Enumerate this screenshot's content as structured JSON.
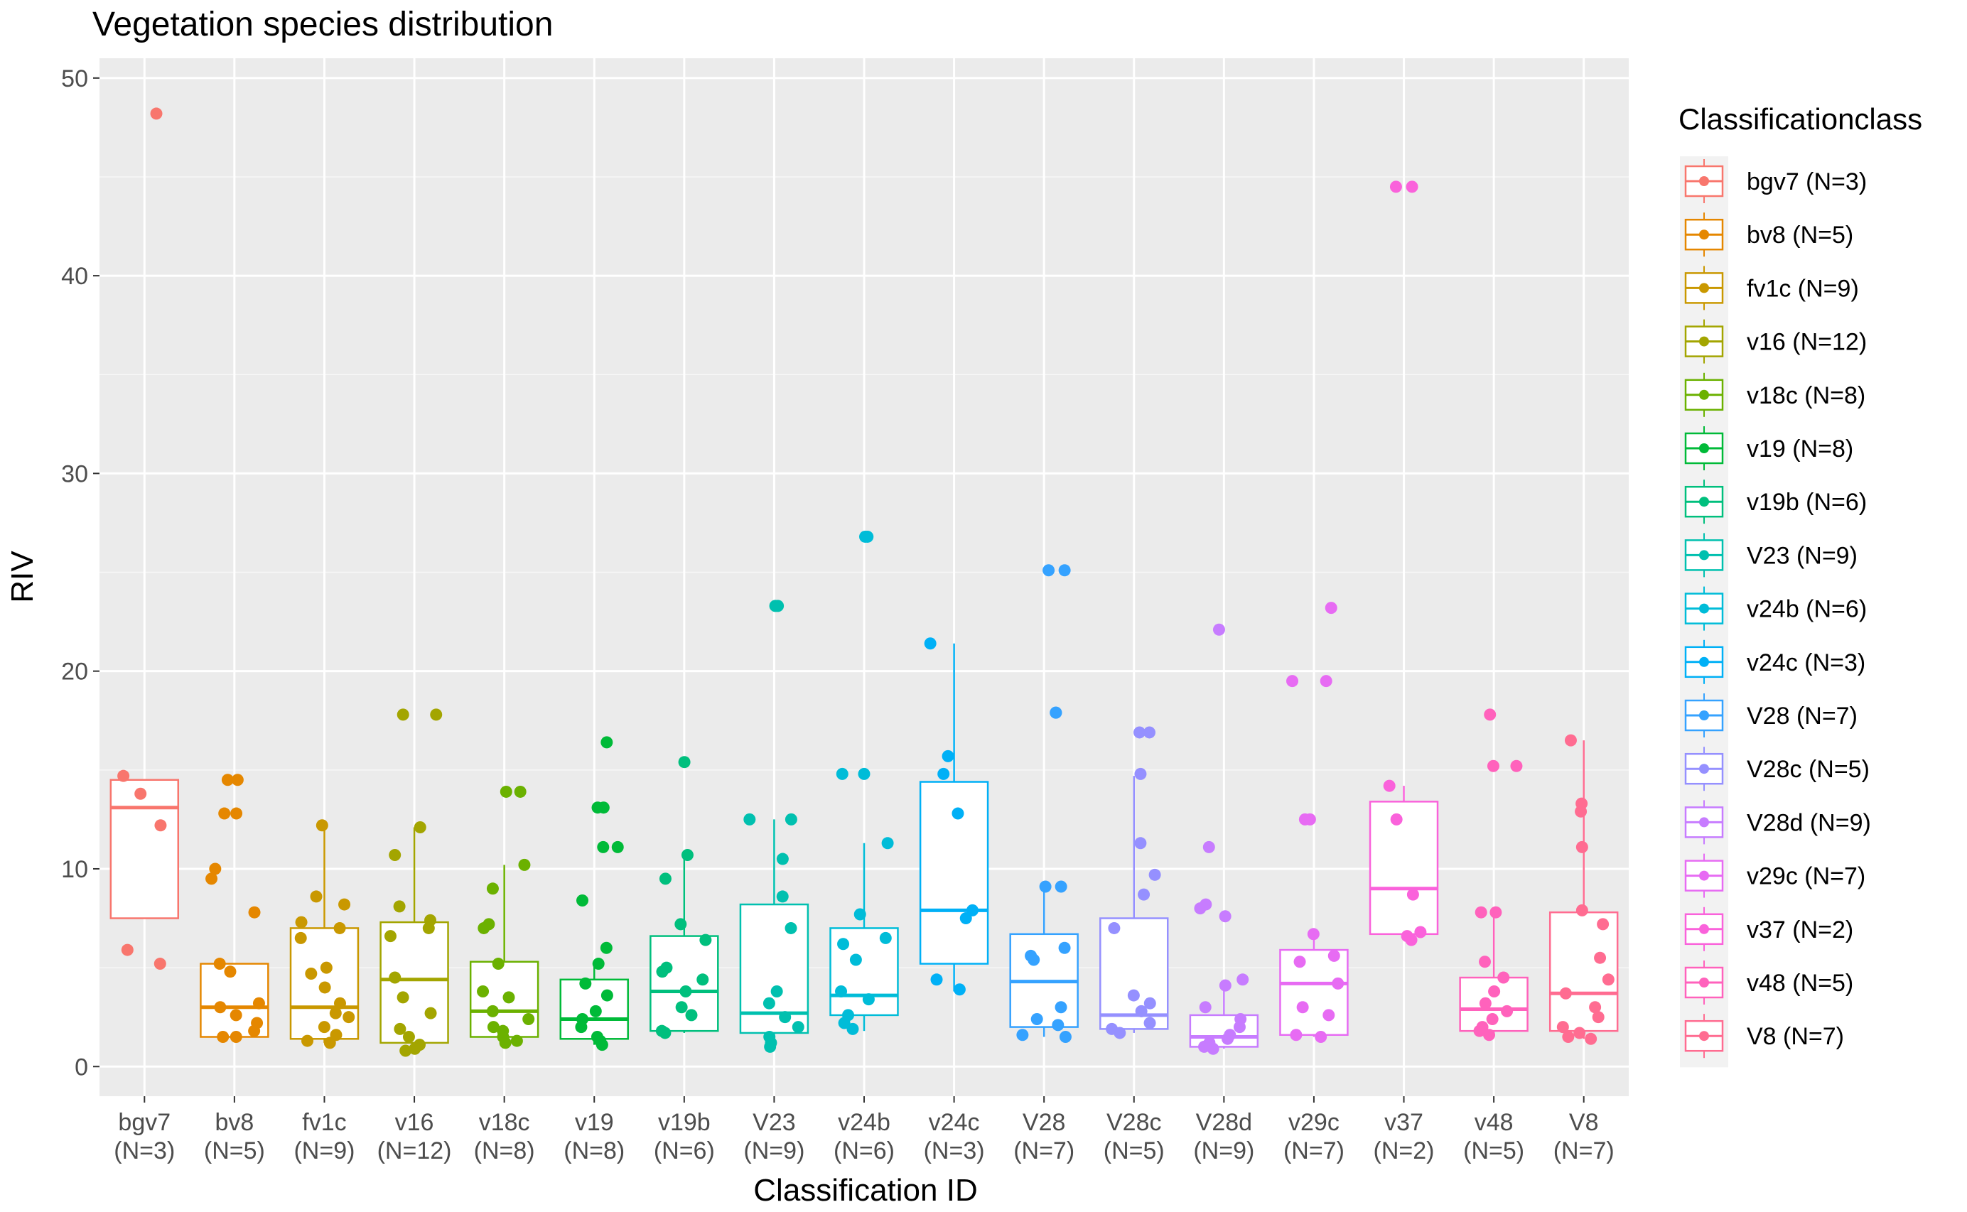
{
  "chart_data": {
    "type": "boxplot",
    "title": "Vegetation species distribution",
    "xlabel": "Classification ID",
    "ylabel": "RIV",
    "ylim": [
      -1.5,
      51
    ],
    "yticks": [
      0,
      10,
      20,
      30,
      40,
      50
    ],
    "legend_title": "Classificationclass",
    "legend_position": "right",
    "series": [
      {
        "id": "bgv7",
        "n_label": "(N=3)",
        "legend": "bgv7 (N=3)",
        "color": "#F8766D",
        "box": {
          "q1": 7.5,
          "median": 13.1,
          "q3": 14.5,
          "whisker_low": 7.5,
          "whisker_high": 14.5
        },
        "points": [
          48.2,
          14.7,
          13.8,
          12.2,
          5.9,
          5.2
        ]
      },
      {
        "id": "bv8",
        "n_label": "(N=5)",
        "legend": "bv8 (N=5)",
        "color": "#E58700",
        "box": {
          "q1": 1.5,
          "median": 3.0,
          "q3": 5.2,
          "whisker_low": 1.5,
          "whisker_high": 5.2
        },
        "points": [
          14.5,
          14.5,
          12.8,
          12.8,
          10.0,
          9.5,
          7.8,
          5.2,
          4.8,
          3.2,
          3.0,
          2.6,
          2.2,
          1.8,
          1.5,
          1.5
        ]
      },
      {
        "id": "fv1c",
        "n_label": "(N=9)",
        "legend": "fv1c (N=9)",
        "color": "#C99800",
        "box": {
          "q1": 1.4,
          "median": 3.0,
          "q3": 7.0,
          "whisker_low": 1.2,
          "whisker_high": 12.2
        },
        "points": [
          12.2,
          8.6,
          8.2,
          7.3,
          7.0,
          6.5,
          5.0,
          4.7,
          4.0,
          3.2,
          2.7,
          2.5,
          2.0,
          1.6,
          1.3,
          1.2
        ]
      },
      {
        "id": "v16",
        "n_label": "(N=12)",
        "legend": "v16 (N=12)",
        "color": "#A3A500",
        "box": {
          "q1": 1.2,
          "median": 4.4,
          "q3": 7.3,
          "whisker_low": 0.8,
          "whisker_high": 12.1
        },
        "points": [
          17.8,
          17.8,
          12.1,
          10.7,
          8.1,
          7.4,
          7.0,
          6.6,
          4.5,
          3.5,
          2.7,
          1.9,
          1.5,
          1.1,
          0.9,
          0.8
        ]
      },
      {
        "id": "v18c",
        "n_label": "(N=8)",
        "legend": "v18c (N=8)",
        "color": "#6BB100",
        "box": {
          "q1": 1.5,
          "median": 2.8,
          "q3": 5.3,
          "whisker_low": 1.2,
          "whisker_high": 10.2
        },
        "points": [
          13.9,
          13.9,
          10.2,
          9.0,
          7.2,
          7.0,
          5.2,
          3.8,
          3.5,
          2.8,
          2.4,
          2.0,
          1.8,
          1.5,
          1.3,
          1.2
        ]
      },
      {
        "id": "v19",
        "n_label": "(N=8)",
        "legend": "v19 (N=8)",
        "color": "#00BA38",
        "box": {
          "q1": 1.4,
          "median": 2.4,
          "q3": 4.4,
          "whisker_low": 1.1,
          "whisker_high": 5.2
        },
        "points": [
          16.4,
          13.1,
          13.1,
          11.1,
          11.1,
          8.4,
          6.0,
          5.2,
          4.2,
          3.6,
          2.8,
          2.4,
          2.0,
          1.5,
          1.3,
          1.1
        ]
      },
      {
        "id": "v19b",
        "n_label": "(N=6)",
        "legend": "v19b (N=6)",
        "color": "#00BF7D",
        "box": {
          "q1": 1.8,
          "median": 3.8,
          "q3": 6.6,
          "whisker_low": 1.7,
          "whisker_high": 10.6
        },
        "points": [
          15.4,
          10.7,
          9.5,
          7.2,
          6.4,
          5.0,
          4.8,
          4.4,
          3.8,
          3.0,
          2.6,
          1.8,
          1.7
        ]
      },
      {
        "id": "V23",
        "n_label": "(N=9)",
        "legend": "V23 (N=9)",
        "color": "#00C0AF",
        "box": {
          "q1": 1.7,
          "median": 2.7,
          "q3": 8.2,
          "whisker_low": 1.0,
          "whisker_high": 12.5
        },
        "points": [
          23.3,
          23.3,
          12.5,
          12.5,
          10.5,
          8.6,
          7.0,
          3.8,
          3.2,
          2.5,
          2.0,
          1.5,
          1.2,
          1.0
        ]
      },
      {
        "id": "v24b",
        "n_label": "(N=6)",
        "legend": "v24b (N=6)",
        "color": "#00BCD8",
        "box": {
          "q1": 2.6,
          "median": 3.6,
          "q3": 7.0,
          "whisker_low": 1.8,
          "whisker_high": 11.3
        },
        "points": [
          26.8,
          26.8,
          14.8,
          14.8,
          11.3,
          7.7,
          6.5,
          6.2,
          5.4,
          3.8,
          3.4,
          2.6,
          2.2,
          1.9
        ]
      },
      {
        "id": "v24c",
        "n_label": "(N=3)",
        "legend": "v24c (N=3)",
        "color": "#00B0F6",
        "box": {
          "q1": 5.2,
          "median": 7.9,
          "q3": 14.4,
          "whisker_low": 3.8,
          "whisker_high": 21.4
        },
        "points": [
          21.4,
          15.7,
          14.8,
          12.8,
          7.9,
          7.5,
          4.4,
          3.9
        ]
      },
      {
        "id": "V28",
        "n_label": "(N=7)",
        "legend": "V28 (N=7)",
        "color": "#35A2FF",
        "box": {
          "q1": 2.0,
          "median": 4.3,
          "q3": 6.7,
          "whisker_low": 1.5,
          "whisker_high": 9.1
        },
        "points": [
          25.1,
          25.1,
          17.9,
          17.9,
          9.1,
          9.1,
          6.0,
          5.6,
          5.4,
          3.0,
          2.4,
          2.1,
          1.6,
          1.5
        ]
      },
      {
        "id": "V28c",
        "n_label": "(N=5)",
        "legend": "V28c (N=5)",
        "color": "#9590FF",
        "box": {
          "q1": 1.9,
          "median": 2.6,
          "q3": 7.5,
          "whisker_low": 1.7,
          "whisker_high": 14.7
        },
        "points": [
          16.9,
          16.9,
          14.8,
          11.3,
          9.7,
          8.7,
          7.0,
          3.6,
          3.2,
          2.8,
          2.2,
          1.9,
          1.7
        ]
      },
      {
        "id": "V28d",
        "n_label": "(N=9)",
        "legend": "V28d (N=9)",
        "color": "#C77CFF",
        "box": {
          "q1": 1.0,
          "median": 1.5,
          "q3": 2.6,
          "whisker_low": 0.9,
          "whisker_high": 4.4
        },
        "points": [
          22.1,
          11.1,
          8.2,
          8.0,
          7.6,
          4.4,
          4.1,
          3.0,
          2.4,
          2.0,
          1.6,
          1.4,
          1.2,
          1.0,
          0.9
        ]
      },
      {
        "id": "v29c",
        "n_label": "(N=7)",
        "legend": "v29c (N=7)",
        "color": "#E76BF3",
        "box": {
          "q1": 1.6,
          "median": 4.2,
          "q3": 5.9,
          "whisker_low": 1.5,
          "whisker_high": 6.7
        },
        "points": [
          23.2,
          19.5,
          19.5,
          12.5,
          12.5,
          6.7,
          5.6,
          5.3,
          4.2,
          3.0,
          2.6,
          1.6,
          1.5
        ]
      },
      {
        "id": "v37",
        "n_label": "(N=2)",
        "legend": "v37 (N=2)",
        "color": "#FA62DB",
        "box": {
          "q1": 6.7,
          "median": 9.0,
          "q3": 13.4,
          "whisker_low": 6.4,
          "whisker_high": 14.2
        },
        "points": [
          44.5,
          44.5,
          14.2,
          12.5,
          8.7,
          6.8,
          6.6,
          6.4
        ]
      },
      {
        "id": "v48",
        "n_label": "(N=5)",
        "legend": "v48 (N=5)",
        "color": "#FF62BC",
        "box": {
          "q1": 1.8,
          "median": 2.9,
          "q3": 4.5,
          "whisker_low": 1.6,
          "whisker_high": 7.8
        },
        "points": [
          17.8,
          15.2,
          15.2,
          7.8,
          7.8,
          5.3,
          4.5,
          3.8,
          3.2,
          2.8,
          2.4,
          2.0,
          1.8,
          1.6
        ]
      },
      {
        "id": "V8",
        "n_label": "(N=7)",
        "legend": "V8 (N=7)",
        "color": "#FF6C91",
        "box": {
          "q1": 1.8,
          "median": 3.7,
          "q3": 7.8,
          "whisker_low": 1.4,
          "whisker_high": 16.5
        },
        "points": [
          16.5,
          13.3,
          12.9,
          11.1,
          7.9,
          7.2,
          5.5,
          4.4,
          3.7,
          3.0,
          2.5,
          2.0,
          1.7,
          1.5,
          1.4
        ]
      }
    ]
  }
}
